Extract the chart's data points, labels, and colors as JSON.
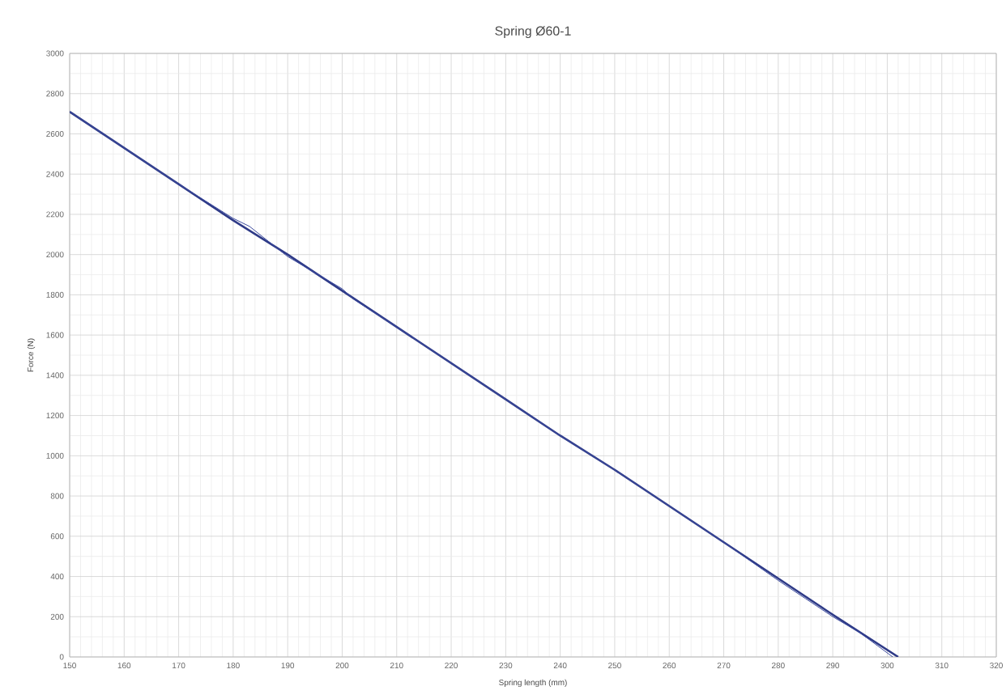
{
  "chart_data": {
    "type": "line",
    "title": "Spring Ø60-1",
    "xlabel": "Spring length (mm)",
    "ylabel": "Force (N)",
    "xlim": [
      150,
      320
    ],
    "xticks": [
      150,
      160,
      170,
      180,
      190,
      200,
      210,
      220,
      230,
      240,
      250,
      260,
      270,
      280,
      290,
      300,
      310,
      320
    ],
    "ylim": [
      0,
      3000
    ],
    "yticks": [
      0,
      200,
      400,
      600,
      800,
      1000,
      1200,
      1400,
      1600,
      1800,
      2000,
      2200,
      2400,
      2600,
      2800,
      3000
    ],
    "grid": true,
    "legend": false,
    "marker": "none",
    "line_style": "solid",
    "series": [
      {
        "color": "#2e3a87",
        "x": [
          150,
          160,
          170,
          180,
          190,
          200,
          210,
          220,
          230,
          240,
          250,
          260,
          270,
          280,
          290,
          302
        ],
        "values": [
          2710,
          2530,
          2350,
          2170,
          2000,
          1820,
          1640,
          1460,
          1280,
          1100,
          930,
          750,
          570,
          390,
          210,
          0
        ]
      },
      {
        "color": "#3b4a9e",
        "x": [
          150,
          160,
          170,
          180,
          183,
          190,
          200,
          202,
          210,
          220,
          230,
          240,
          250,
          260,
          270,
          280,
          285,
          290,
          295,
          301
        ],
        "values": [
          2710,
          2530,
          2350,
          2180,
          2140,
          1990,
          1830,
          1780,
          1640,
          1460,
          1280,
          1100,
          930,
          750,
          570,
          380,
          290,
          200,
          120,
          0
        ]
      }
    ]
  }
}
